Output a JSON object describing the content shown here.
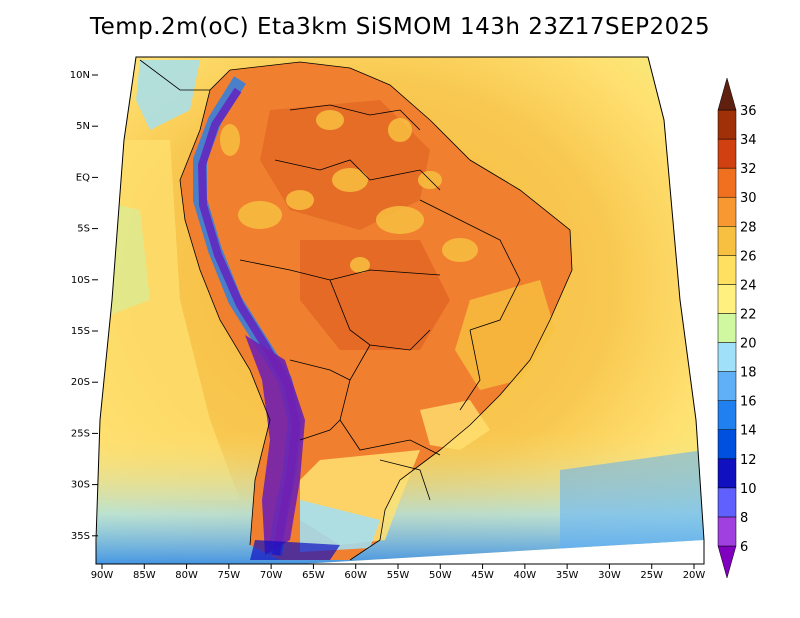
{
  "title": "Temp.2m(oC) Eta3km SiSMOM 143h 23Z17SEP2025",
  "chart_data": {
    "type": "heatmap",
    "variable": "Temp.2m(oC)",
    "lat_ticks": [
      "10N",
      "5N",
      "EQ",
      "5S",
      "10S",
      "15S",
      "20S",
      "25S",
      "30S",
      "35S"
    ],
    "lat_values": [
      10,
      5,
      0,
      -5,
      -10,
      -15,
      -20,
      -25,
      -30,
      -35
    ],
    "lon_ticks": [
      "90W",
      "85W",
      "80W",
      "75W",
      "70W",
      "65W",
      "60W",
      "55W",
      "50W",
      "45W",
      "40W",
      "35W",
      "30W",
      "25W",
      "20W"
    ],
    "lon_values": [
      -90,
      -85,
      -80,
      -75,
      -70,
      -65,
      -60,
      -55,
      -50,
      -45,
      -40,
      -35,
      -30,
      -25,
      -20
    ],
    "colorbar": {
      "labels": [
        "6",
        "8",
        "10",
        "12",
        "14",
        "16",
        "18",
        "20",
        "22",
        "24",
        "26",
        "28",
        "30",
        "32",
        "34",
        "36"
      ],
      "values": [
        6,
        8,
        10,
        12,
        14,
        16,
        18,
        20,
        22,
        24,
        26,
        28,
        30,
        32,
        34,
        36
      ],
      "colors": [
        "#8000c0",
        "#a040e0",
        "#6060ff",
        "#1010c0",
        "#0050e0",
        "#2080f0",
        "#60b0f8",
        "#a0e0f8",
        "#d0f8a0",
        "#fff080",
        "#ffe060",
        "#f8c040",
        "#f89830",
        "#f07020",
        "#d04010",
        "#a03008",
        "#602010"
      ]
    },
    "colors": {
      "ocean_warm": "#f8b840",
      "ocean_mid": "#ffe070",
      "land_hot": "#f08030",
      "andes_cold": "#6030c0",
      "frame": "#000000"
    }
  }
}
